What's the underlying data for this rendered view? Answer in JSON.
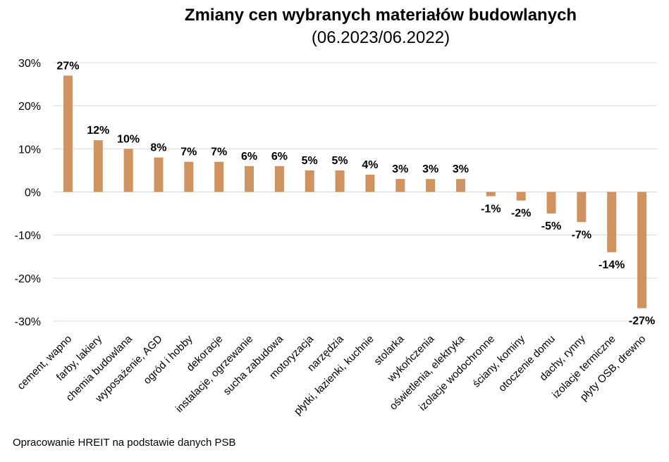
{
  "source_note": "Opracowanie HREIT na podstawie danych PSB",
  "colors": {
    "bar": "#d0925f",
    "grid": "#d9d9d9",
    "text": "#000000"
  },
  "chart_data": {
    "type": "bar",
    "title": "Zmiany cen wybranych materiałów budowlanych",
    "subtitle": "(06.2023/06.2022)",
    "xlabel": "",
    "ylabel": "",
    "ylim": [
      -30,
      30
    ],
    "yticks": [
      30,
      20,
      10,
      0,
      -10,
      -20,
      -30
    ],
    "ytick_labels": [
      "30%",
      "20%",
      "10%",
      "0%",
      "-10%",
      "-20%",
      "-30%"
    ],
    "grid": true,
    "categories": [
      "cement, wapno",
      "farby, lakiery",
      "chemia budowlana",
      "wyposażenie, AGD",
      "ogród i hobby",
      "dekoracje",
      "instalacje, ogrzewanie",
      "sucha zabudowa",
      "motoryzacja",
      "narzędzia",
      "płytki, łazienki, kuchnie",
      "stolarka",
      "wykończenia",
      "oświetlenia, elektryka",
      "izolacje wodochronne",
      "ściany, kominy",
      "otoczenie domu",
      "dachy, rynny",
      "izolacje termiczne",
      "płyty OSB, drewno"
    ],
    "values": [
      27,
      12,
      10,
      8,
      7,
      7,
      6,
      6,
      5,
      5,
      4,
      3,
      3,
      3,
      -1,
      -2,
      -5,
      -7,
      -14,
      -27
    ],
    "data_labels": [
      "27%",
      "12%",
      "10%",
      "8%",
      "7%",
      "7%",
      "6%",
      "6%",
      "5%",
      "5%",
      "4%",
      "3%",
      "3%",
      "3%",
      "-1%",
      "-2%",
      "-5%",
      "-7%",
      "-14%",
      "-27%"
    ]
  }
}
